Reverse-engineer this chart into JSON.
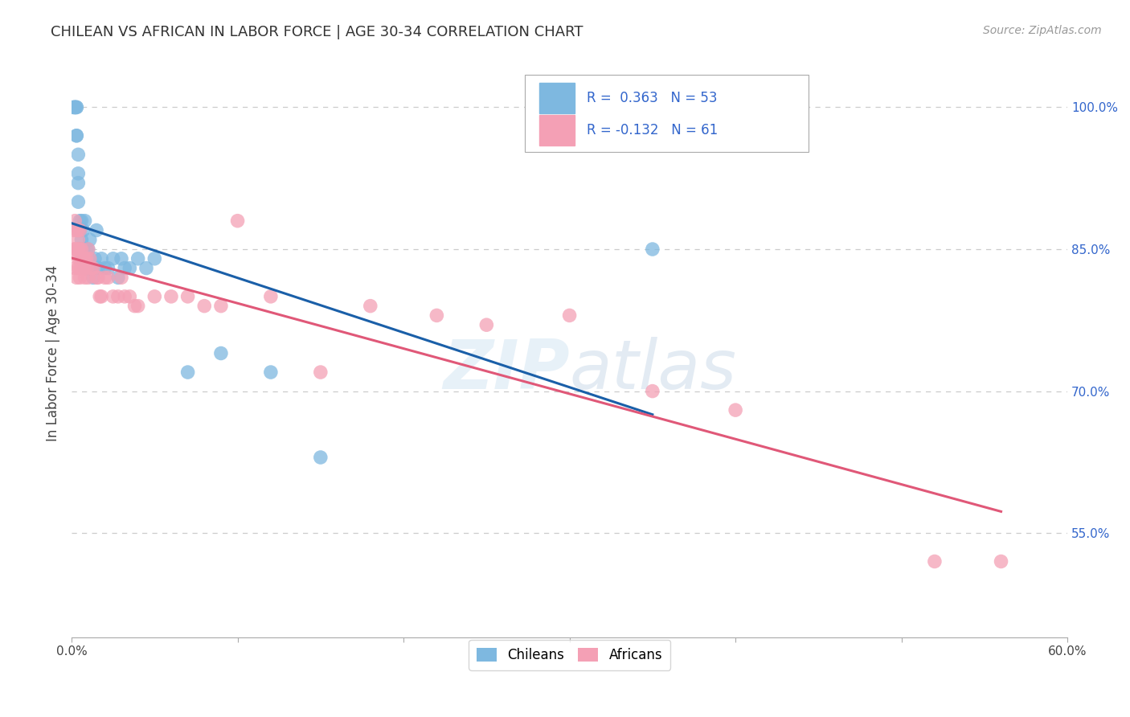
{
  "title": "CHILEAN VS AFRICAN IN LABOR FORCE | AGE 30-34 CORRELATION CHART",
  "source": "Source: ZipAtlas.com",
  "ylabel": "In Labor Force | Age 30-34",
  "xlim": [
    0.0,
    0.6
  ],
  "ylim": [
    0.44,
    1.04
  ],
  "xtick_vals": [
    0.0,
    0.1,
    0.2,
    0.3,
    0.4,
    0.5,
    0.6
  ],
  "xtick_labels": [
    "0.0%",
    "",
    "",
    "",
    "",
    "",
    "60.0%"
  ],
  "ytick_right": [
    0.55,
    0.7,
    0.85,
    1.0
  ],
  "ytick_right_labels": [
    "55.0%",
    "70.0%",
    "85.0%",
    "100.0%"
  ],
  "grid_color": "#cccccc",
  "background_color": "#ffffff",
  "chilean_color": "#7EB8E0",
  "african_color": "#F4A0B5",
  "chilean_line_color": "#1A5FA8",
  "african_line_color": "#E05878",
  "chilean_R": 0.363,
  "chilean_N": 53,
  "african_R": -0.132,
  "african_N": 61,
  "legend_chileans": "Chileans",
  "legend_africans": "Africans",
  "chilean_x": [
    0.001,
    0.002,
    0.002,
    0.002,
    0.003,
    0.003,
    0.003,
    0.003,
    0.004,
    0.004,
    0.004,
    0.004,
    0.005,
    0.005,
    0.005,
    0.005,
    0.005,
    0.006,
    0.006,
    0.006,
    0.007,
    0.007,
    0.007,
    0.008,
    0.008,
    0.008,
    0.009,
    0.009,
    0.01,
    0.01,
    0.011,
    0.011,
    0.012,
    0.013,
    0.014,
    0.015,
    0.016,
    0.018,
    0.02,
    0.022,
    0.025,
    0.028,
    0.03,
    0.032,
    0.035,
    0.04,
    0.045,
    0.05,
    0.07,
    0.09,
    0.12,
    0.15,
    0.35
  ],
  "chilean_y": [
    1.0,
    1.0,
    1.0,
    1.0,
    0.97,
    0.97,
    1.0,
    1.0,
    0.95,
    0.93,
    0.9,
    0.92,
    0.88,
    0.85,
    0.85,
    0.85,
    0.87,
    0.84,
    0.88,
    0.86,
    0.85,
    0.84,
    0.87,
    0.83,
    0.84,
    0.88,
    0.83,
    0.85,
    0.83,
    0.85,
    0.84,
    0.86,
    0.83,
    0.82,
    0.84,
    0.87,
    0.83,
    0.84,
    0.83,
    0.83,
    0.84,
    0.82,
    0.84,
    0.83,
    0.83,
    0.84,
    0.83,
    0.84,
    0.72,
    0.74,
    0.72,
    0.63,
    0.85
  ],
  "african_x": [
    0.001,
    0.001,
    0.002,
    0.002,
    0.002,
    0.003,
    0.003,
    0.003,
    0.004,
    0.004,
    0.004,
    0.004,
    0.004,
    0.005,
    0.005,
    0.005,
    0.005,
    0.005,
    0.006,
    0.006,
    0.007,
    0.007,
    0.007,
    0.008,
    0.008,
    0.009,
    0.009,
    0.01,
    0.01,
    0.011,
    0.012,
    0.013,
    0.015,
    0.016,
    0.017,
    0.018,
    0.02,
    0.022,
    0.025,
    0.028,
    0.03,
    0.032,
    0.035,
    0.038,
    0.04,
    0.05,
    0.06,
    0.07,
    0.08,
    0.09,
    0.1,
    0.12,
    0.15,
    0.18,
    0.22,
    0.25,
    0.3,
    0.35,
    0.4,
    0.52,
    0.56
  ],
  "african_y": [
    0.87,
    0.85,
    0.88,
    0.85,
    0.83,
    0.87,
    0.85,
    0.82,
    0.87,
    0.85,
    0.83,
    0.84,
    0.86,
    0.87,
    0.83,
    0.85,
    0.84,
    0.82,
    0.83,
    0.85,
    0.83,
    0.83,
    0.84,
    0.82,
    0.84,
    0.83,
    0.84,
    0.82,
    0.85,
    0.84,
    0.83,
    0.83,
    0.82,
    0.82,
    0.8,
    0.8,
    0.82,
    0.82,
    0.8,
    0.8,
    0.82,
    0.8,
    0.8,
    0.79,
    0.79,
    0.8,
    0.8,
    0.8,
    0.79,
    0.79,
    0.88,
    0.8,
    0.72,
    0.79,
    0.78,
    0.77,
    0.78,
    0.7,
    0.68,
    0.52,
    0.52
  ]
}
